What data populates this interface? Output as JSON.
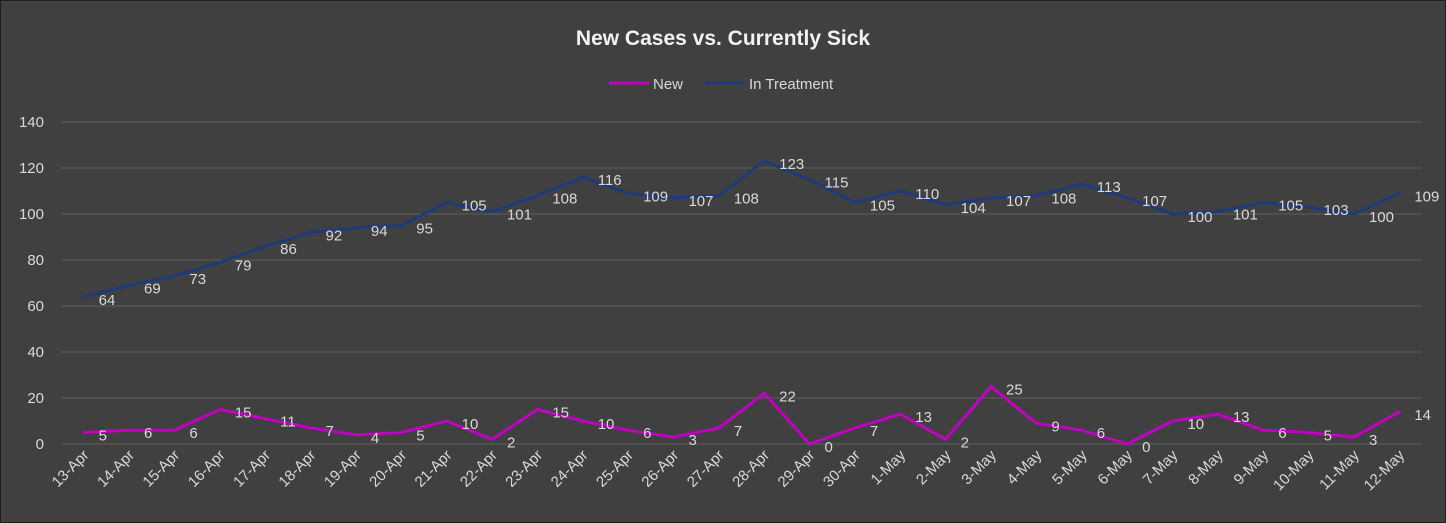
{
  "chart_data": {
    "type": "line",
    "title": "New Cases vs. Currently Sick",
    "xlabel": "",
    "ylabel": "",
    "ylim": [
      0,
      140
    ],
    "yticks": [
      0,
      20,
      40,
      60,
      80,
      100,
      120,
      140
    ],
    "grid": true,
    "legend_position": "top",
    "categories": [
      "13-Apr",
      "14-Apr",
      "15-Apr",
      "16-Apr",
      "17-Apr",
      "18-Apr",
      "19-Apr",
      "20-Apr",
      "21-Apr",
      "22-Apr",
      "23-Apr",
      "24-Apr",
      "25-Apr",
      "26-Apr",
      "27-Apr",
      "28-Apr",
      "29-Apr",
      "30-Apr",
      "1-May",
      "2-May",
      "3-May",
      "4-May",
      "5-May",
      "6-May",
      "7-May",
      "8-May",
      "9-May",
      "10-May",
      "11-May",
      "12-May"
    ],
    "series": [
      {
        "name": "New",
        "color": "#c000c0",
        "values": [
          5,
          6,
          6,
          15,
          11,
          7,
          4,
          5,
          10,
          2,
          15,
          10,
          6,
          3,
          7,
          22,
          0,
          7,
          13,
          2,
          25,
          9,
          6,
          0,
          10,
          13,
          6,
          5,
          3,
          14
        ]
      },
      {
        "name": "In Treatment",
        "color": "#1f3a7a",
        "values": [
          64,
          69,
          73,
          79,
          86,
          92,
          94,
          95,
          105,
          101,
          108,
          116,
          109,
          107,
          108,
          123,
          115,
          105,
          110,
          104,
          107,
          108,
          113,
          107,
          100,
          101,
          105,
          103,
          100,
          109
        ]
      }
    ]
  }
}
